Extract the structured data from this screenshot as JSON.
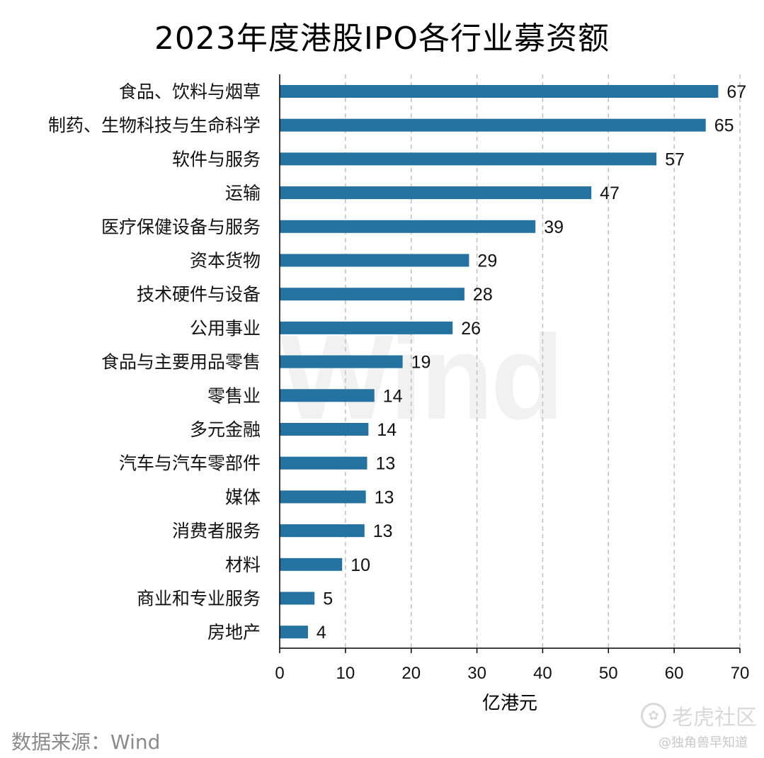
{
  "title": "2023年度港股IPO各行业募资额",
  "source": "数据来源：Wind",
  "watermark": "Wind",
  "logo": {
    "icon": "tiger-icon",
    "text": "老虎社区",
    "sub": "@独角兽早知道"
  },
  "colors": {
    "bar": "#2372a0",
    "grid": "#bfbfbf",
    "axis": "#000000"
  },
  "chart_data": {
    "type": "bar",
    "orientation": "horizontal",
    "title": "2023年度港股IPO各行业募资额",
    "xlabel": "亿港元",
    "ylabel": "",
    "xlim": [
      0,
      70
    ],
    "xticks": [
      0,
      10,
      20,
      30,
      40,
      50,
      60,
      70
    ],
    "grid": "vertical dashed",
    "categories": [
      "食品、饮料与烟草",
      "制药、生物科技与生命科学",
      "软件与服务",
      "运输",
      "医疗保健设备与服务",
      "资本货物",
      "技术硬件与设备",
      "公用事业",
      "食品与主要用品零售",
      "零售业",
      "多元金融",
      "汽车与汽车零部件",
      "媒体",
      "消费者服务",
      "材料",
      "商业和专业服务",
      "房地产"
    ],
    "values": [
      66.7,
      64.8,
      57.3,
      47.4,
      38.9,
      28.8,
      28.1,
      26.3,
      18.7,
      14.4,
      13.5,
      13.3,
      13.1,
      12.9,
      9.5,
      5.3,
      4.3
    ],
    "labels": [
      "67",
      "65",
      "57",
      "47",
      "39",
      "29",
      "28",
      "26",
      "19",
      "14",
      "14",
      "13",
      "13",
      "13",
      "10",
      "5",
      "4"
    ]
  }
}
